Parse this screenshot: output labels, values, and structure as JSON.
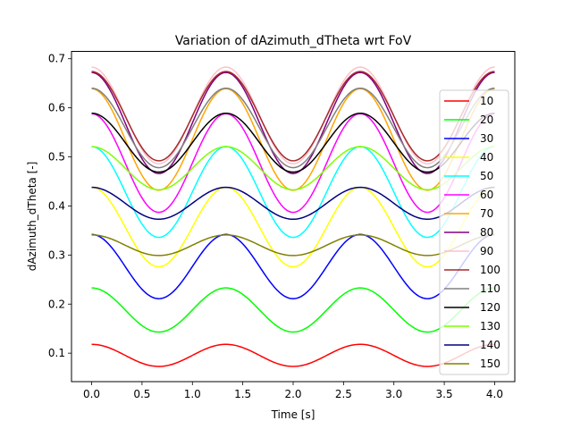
{
  "chart_data": {
    "type": "line",
    "title": "Variation of dAzimuth_dTheta wrt FoV",
    "xlabel": "Time [s]",
    "ylabel": "dAzimuth_dTheta [-]",
    "xlim": [
      -0.2,
      4.2
    ],
    "ylim": [
      0.042,
      0.715
    ],
    "xticks": [
      0.0,
      0.5,
      1.0,
      1.5,
      2.0,
      2.5,
      3.0,
      3.5,
      4.0
    ],
    "xtick_labels": [
      "0.0",
      "0.5",
      "1.0",
      "1.5",
      "2.0",
      "2.5",
      "3.0",
      "3.5",
      "4.0"
    ],
    "yticks": [
      0.1,
      0.2,
      0.3,
      0.4,
      0.5,
      0.6,
      0.7
    ],
    "ytick_labels": [
      "0.1",
      "0.2",
      "0.3",
      "0.4",
      "0.5",
      "0.6",
      "0.7"
    ],
    "grid": false,
    "legend_position": "right",
    "period": 1.333,
    "x_range": [
      0.0,
      4.0
    ],
    "series": [
      {
        "name": "10",
        "color": "#ff0000",
        "max": 0.118,
        "min": 0.073
      },
      {
        "name": "20",
        "color": "#00ff00",
        "max": 0.233,
        "min": 0.143
      },
      {
        "name": "30",
        "color": "#0000ff",
        "max": 0.342,
        "min": 0.211
      },
      {
        "name": "40",
        "color": "#ffff00",
        "max": 0.438,
        "min": 0.276
      },
      {
        "name": "50",
        "color": "#00ffff",
        "max": 0.521,
        "min": 0.336
      },
      {
        "name": "60",
        "color": "#ff00ff",
        "max": 0.588,
        "min": 0.387
      },
      {
        "name": "70",
        "color": "#ffa500",
        "max": 0.639,
        "min": 0.432
      },
      {
        "name": "80",
        "color": "#800080",
        "max": 0.672,
        "min": 0.466
      },
      {
        "name": "90",
        "color": "#ffc0cb",
        "max": 0.683,
        "min": 0.486
      },
      {
        "name": "100",
        "color": "#a52a2a",
        "max": 0.674,
        "min": 0.492
      },
      {
        "name": "110",
        "color": "#808080",
        "max": 0.64,
        "min": 0.478
      },
      {
        "name": "120",
        "color": "#000000",
        "max": 0.589,
        "min": 0.469
      },
      {
        "name": "130",
        "color": "#7fff00",
        "max": 0.521,
        "min": 0.433
      },
      {
        "name": "140",
        "color": "#000080",
        "max": 0.438,
        "min": 0.373
      },
      {
        "name": "150",
        "color": "#808000",
        "max": 0.341,
        "min": 0.299
      }
    ]
  }
}
